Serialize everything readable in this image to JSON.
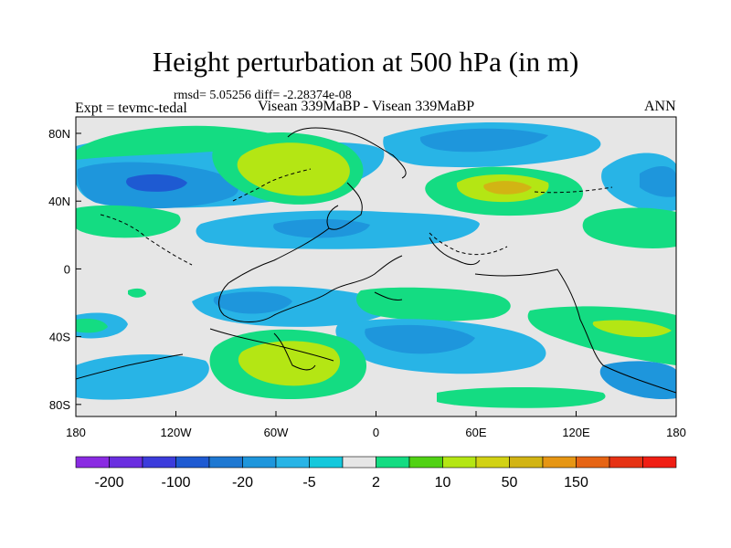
{
  "chart_data": {
    "type": "heatmap",
    "title": "Height perturbation at 500 hPa (in m)",
    "subtitle": "rmsd= 5.05256 diff= -2.28374e-08",
    "left_label": "Expt = tevmc-tedal",
    "center_label": "Visean 339MaBP - Visean 339MaBP",
    "right_label": "ANN",
    "x_ticks": [
      "180",
      "120W",
      "60W",
      "0",
      "60E",
      "120E",
      "180"
    ],
    "y_ticks": [
      "80N",
      "40N",
      "0",
      "40S",
      "80S"
    ],
    "xlim": [
      -180,
      180
    ],
    "ylim": [
      -90,
      90
    ],
    "colorbar": {
      "labels": [
        "-200",
        "-100",
        "-20",
        "-5",
        "2",
        "10",
        "50",
        "150"
      ],
      "colors": [
        "#8a2be2",
        "#6a2ee0",
        "#3c3cdc",
        "#1e5ad2",
        "#1e78d2",
        "#1e96dc",
        "#28b4e6",
        "#14c8dc",
        "#e6e6e6",
        "#14dc82",
        "#50d214",
        "#b4e614",
        "#d2d214",
        "#d2b414",
        "#e69614",
        "#e66414",
        "#e63214",
        "#f01e14"
      ]
    },
    "regions": [
      {
        "lon": -140,
        "lat": 55,
        "value": -20
      },
      {
        "lon": -55,
        "lat": 60,
        "value": 10
      },
      {
        "lon": 40,
        "lat": 75,
        "value": -20
      },
      {
        "lon": 80,
        "lat": 45,
        "value": 50
      },
      {
        "lon": 160,
        "lat": 25,
        "value": 10
      },
      {
        "lon": 0,
        "lat": 25,
        "value": -5
      },
      {
        "lon": -40,
        "lat": -60,
        "value": 10
      },
      {
        "lon": 120,
        "lat": -45,
        "value": 10
      },
      {
        "lon": -60,
        "lat": -20,
        "value": -5
      },
      {
        "lon": 100,
        "lat": -60,
        "value": -5
      },
      {
        "lon": -160,
        "lat": -75,
        "value": -5
      }
    ]
  }
}
